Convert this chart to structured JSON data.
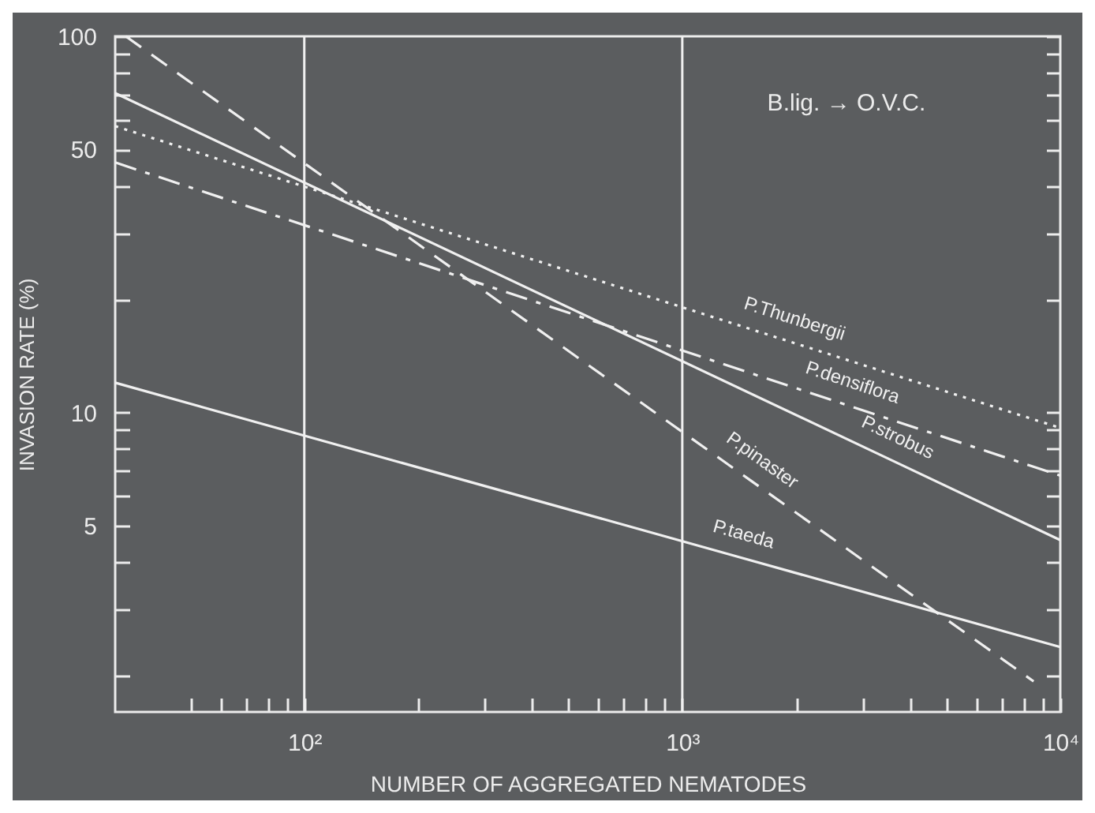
{
  "chart_data": {
    "type": "line",
    "xlabel": "NUMBER OF AGGREGATED NEMATODES",
    "ylabel": "INVASION RATE (%)",
    "log": "xy",
    "xlim": [
      31.6,
      10000
    ],
    "ylim": [
      1.6,
      100
    ],
    "xticks": [
      {
        "value": 50,
        "label": null
      },
      {
        "value": 60,
        "label": null
      },
      {
        "value": 70,
        "label": null
      },
      {
        "value": 80,
        "label": null
      },
      {
        "value": 90,
        "label": null
      },
      {
        "value": 100,
        "label": "10²"
      },
      {
        "value": 200,
        "label": null
      },
      {
        "value": 300,
        "label": null
      },
      {
        "value": 400,
        "label": null
      },
      {
        "value": 500,
        "label": null
      },
      {
        "value": 600,
        "label": null
      },
      {
        "value": 700,
        "label": null
      },
      {
        "value": 800,
        "label": null
      },
      {
        "value": 900,
        "label": null
      },
      {
        "value": 1000,
        "label": "10³"
      },
      {
        "value": 2000,
        "label": null
      },
      {
        "value": 3000,
        "label": null
      },
      {
        "value": 4000,
        "label": null
      },
      {
        "value": 5000,
        "label": null
      },
      {
        "value": 6000,
        "label": null
      },
      {
        "value": 7000,
        "label": null
      },
      {
        "value": 8000,
        "label": null
      },
      {
        "value": 9000,
        "label": null
      },
      {
        "value": 10000,
        "label": "10⁴"
      }
    ],
    "yticks": [
      {
        "value": 2,
        "label": null
      },
      {
        "value": 3,
        "label": null
      },
      {
        "value": 4,
        "label": null
      },
      5,
      {
        "value": 6,
        "label": null
      },
      {
        "value": 7,
        "label": null
      },
      {
        "value": 8,
        "label": null
      },
      {
        "value": 9,
        "label": null
      },
      10,
      {
        "value": 20,
        "label": null
      },
      {
        "value": 30,
        "label": null
      },
      {
        "value": 40,
        "label": null
      },
      50,
      {
        "value": 60,
        "label": null
      },
      {
        "value": 70,
        "label": null
      },
      {
        "value": 80,
        "label": null
      },
      {
        "value": 90,
        "label": null
      },
      100
    ],
    "grid": false,
    "legend": false,
    "marker": "none",
    "ref_lines": [
      {
        "axis": "x",
        "value": 100,
        "color": "#f0f0f0"
      },
      {
        "axis": "x",
        "value": 1000,
        "color": "#f0f0f0"
      }
    ],
    "annotations": [
      "B.lig. → O.V.C."
    ],
    "series": [
      {
        "name": "P.Thunbergii",
        "color": "#f0f0f0",
        "line_style": "dotted",
        "x": [
          31.6,
          1900,
          10000
        ],
        "values": [
          57.7,
          15.5,
          9.1
        ]
      },
      {
        "name": "P.densiflora",
        "color": "#f0f0f0",
        "line_style": "dashdot",
        "x": [
          31.6,
          2700,
          10000
        ],
        "values": [
          46.2,
          10.5,
          6.8
        ]
      },
      {
        "name": "P.strobus",
        "color": "#f0f0f0",
        "line_style": "solid",
        "x": [
          31.6,
          3500,
          10000
        ],
        "values": [
          70.6,
          7.55,
          4.58
        ]
      },
      {
        "name": "P.pinaster",
        "color": "#f0f0f0",
        "line_style": "dashed",
        "x": [
          33.7,
          1500,
          8500
        ],
        "values": [
          100,
          6.65,
          1.93
        ]
      },
      {
        "name": "P.taeda",
        "color": "#f0f0f0",
        "line_style": "solid",
        "x": [
          31.6,
          1400,
          10000
        ],
        "values": [
          12.0,
          4.14,
          2.38
        ]
      }
    ]
  }
}
